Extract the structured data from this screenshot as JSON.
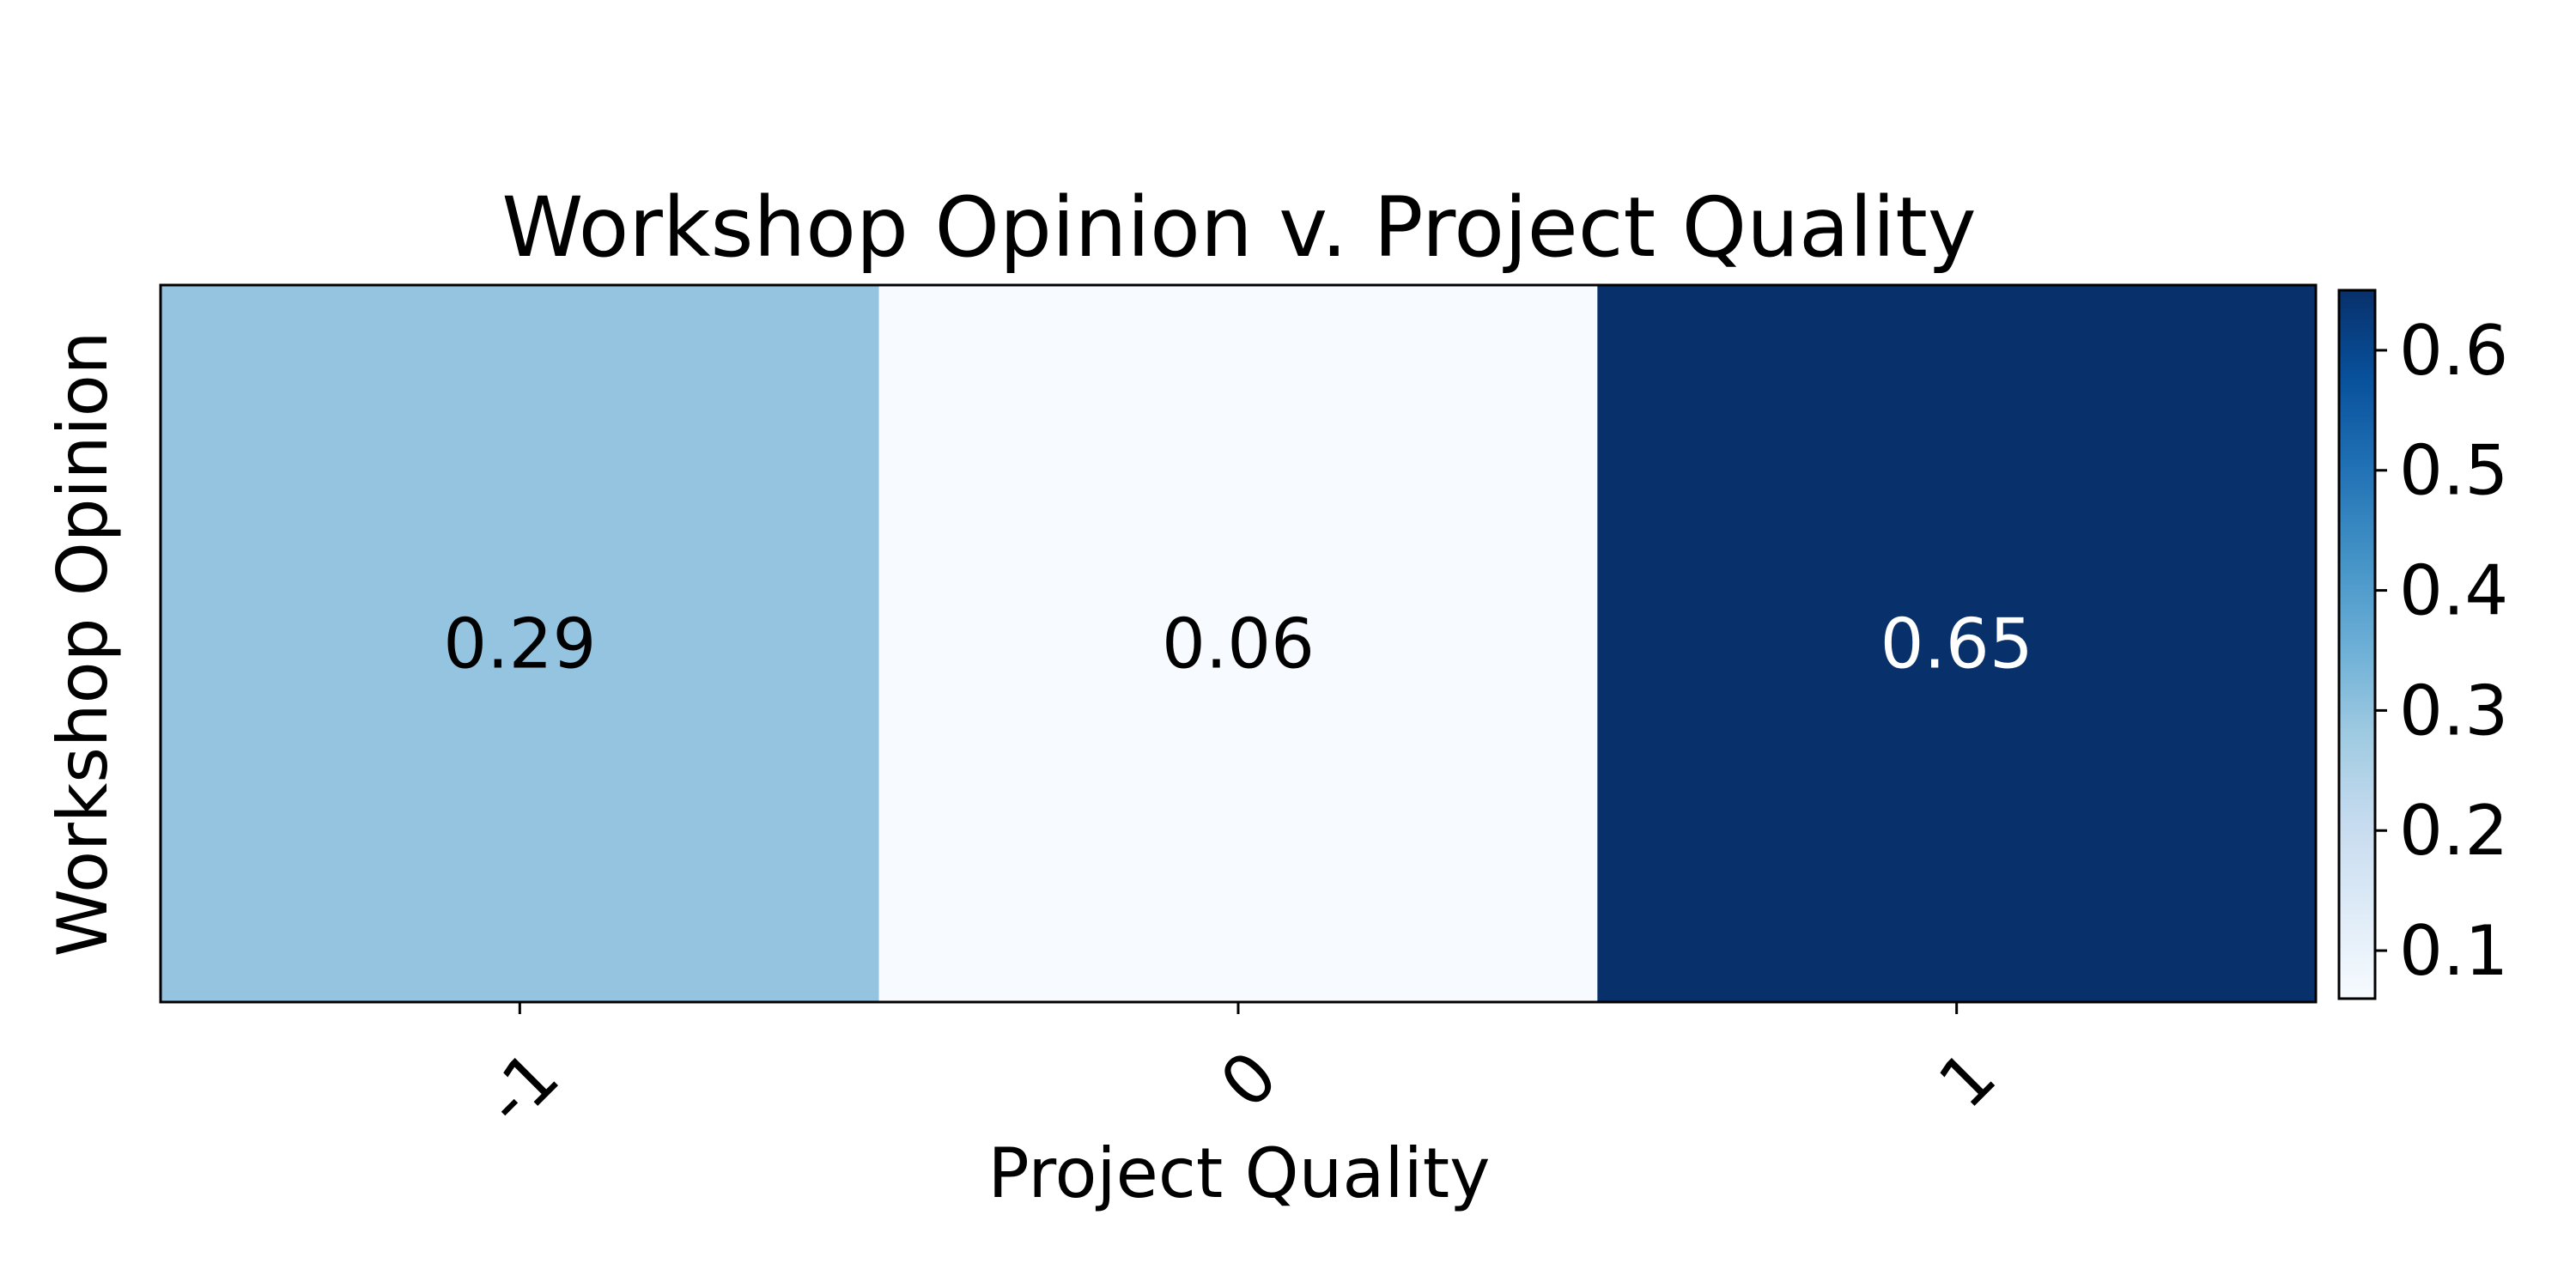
{
  "chart_data": {
    "type": "heatmap",
    "title": "Workshop Opinion v. Project Quality",
    "xlabel": "Project Quality",
    "ylabel": "Workshop Opinion",
    "x_categories": [
      "-1",
      "0",
      "1"
    ],
    "y_categories": [],
    "values": [
      [
        0.29,
        0.06,
        0.65
      ]
    ],
    "value_labels": [
      "0.29",
      "0.06",
      "0.65"
    ],
    "colormap": "Blues",
    "colorbar": {
      "range": [
        0.06,
        0.65
      ],
      "ticks": [
        0.1,
        0.2,
        0.3,
        0.4,
        0.5,
        0.6
      ],
      "tick_labels": [
        "0.1",
        "0.2",
        "0.3",
        "0.4",
        "0.5",
        "0.6"
      ]
    },
    "colors": {
      "cell_-1": "#94c4df",
      "cell_0": "#f7fbff",
      "cell_1": "#08306b",
      "label_dark": "#000000",
      "label_light": "#ffffff"
    }
  }
}
